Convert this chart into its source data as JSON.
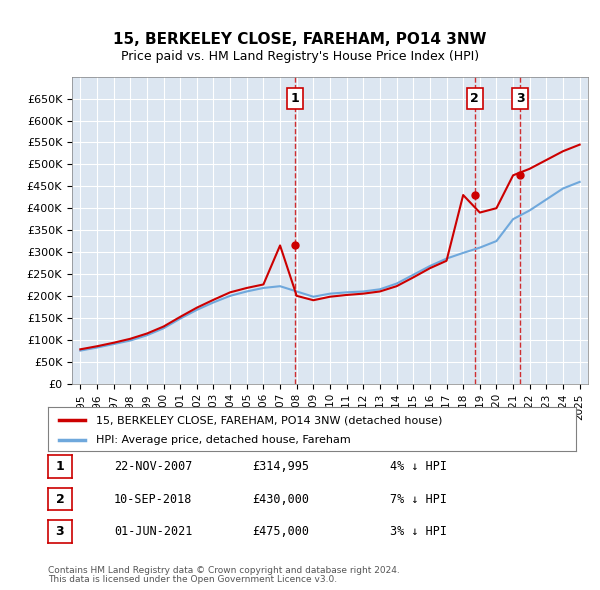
{
  "title": "15, BERKELEY CLOSE, FAREHAM, PO14 3NW",
  "subtitle": "Price paid vs. HM Land Registry's House Price Index (HPI)",
  "footnote1": "Contains HM Land Registry data © Crown copyright and database right 2024.",
  "footnote2": "This data is licensed under the Open Government Licence v3.0.",
  "legend_line1": "15, BERKELEY CLOSE, FAREHAM, PO14 3NW (detached house)",
  "legend_line2": "HPI: Average price, detached house, Fareham",
  "sales": [
    {
      "num": 1,
      "date": "22-NOV-2007",
      "price": 314995,
      "pct": "4%",
      "dir": "↓"
    },
    {
      "num": 2,
      "date": "10-SEP-2018",
      "price": 430000,
      "pct": "7%",
      "dir": "↓"
    },
    {
      "num": 3,
      "date": "01-JUN-2021",
      "price": 475000,
      "pct": "3%",
      "dir": "↓"
    }
  ],
  "sale_years": [
    2007.896,
    2018.692,
    2021.416
  ],
  "sale_prices": [
    314995,
    430000,
    475000
  ],
  "hpi_color": "#6fa8dc",
  "sale_color": "#cc0000",
  "vline_color": "#cc0000",
  "background_color": "#dce6f1",
  "plot_bg": "#dce6f1",
  "ylim": [
    0,
    700000
  ],
  "yticks": [
    0,
    50000,
    100000,
    150000,
    200000,
    250000,
    300000,
    350000,
    400000,
    450000,
    500000,
    550000,
    600000,
    650000
  ],
  "hpi_years": [
    1995,
    1996,
    1997,
    1998,
    1999,
    2000,
    2001,
    2002,
    2003,
    2004,
    2005,
    2006,
    2007,
    2008,
    2009,
    2010,
    2011,
    2012,
    2013,
    2014,
    2015,
    2016,
    2017,
    2018,
    2019,
    2020,
    2021,
    2022,
    2023,
    2024,
    2025
  ],
  "hpi_values": [
    75000,
    82000,
    90000,
    98000,
    110000,
    126000,
    148000,
    168000,
    185000,
    200000,
    210000,
    218000,
    222000,
    210000,
    198000,
    205000,
    208000,
    210000,
    215000,
    228000,
    248000,
    268000,
    285000,
    298000,
    310000,
    325000,
    375000,
    395000,
    420000,
    445000,
    460000
  ],
  "red_line_years": [
    1995,
    1996,
    1997,
    1998,
    1999,
    2000,
    2001,
    2002,
    2003,
    2004,
    2005,
    2006,
    2007,
    2008,
    2009,
    2010,
    2011,
    2012,
    2013,
    2014,
    2015,
    2016,
    2017,
    2018,
    2019,
    2020,
    2021,
    2022,
    2023,
    2024,
    2025
  ],
  "red_line_values": [
    78000,
    85000,
    93000,
    102000,
    114000,
    130000,
    152000,
    173000,
    191000,
    208000,
    218000,
    226000,
    314995,
    200000,
    190000,
    198000,
    202000,
    205000,
    210000,
    222000,
    242000,
    263000,
    280000,
    430000,
    390000,
    400000,
    475000,
    490000,
    510000,
    530000,
    545000
  ]
}
